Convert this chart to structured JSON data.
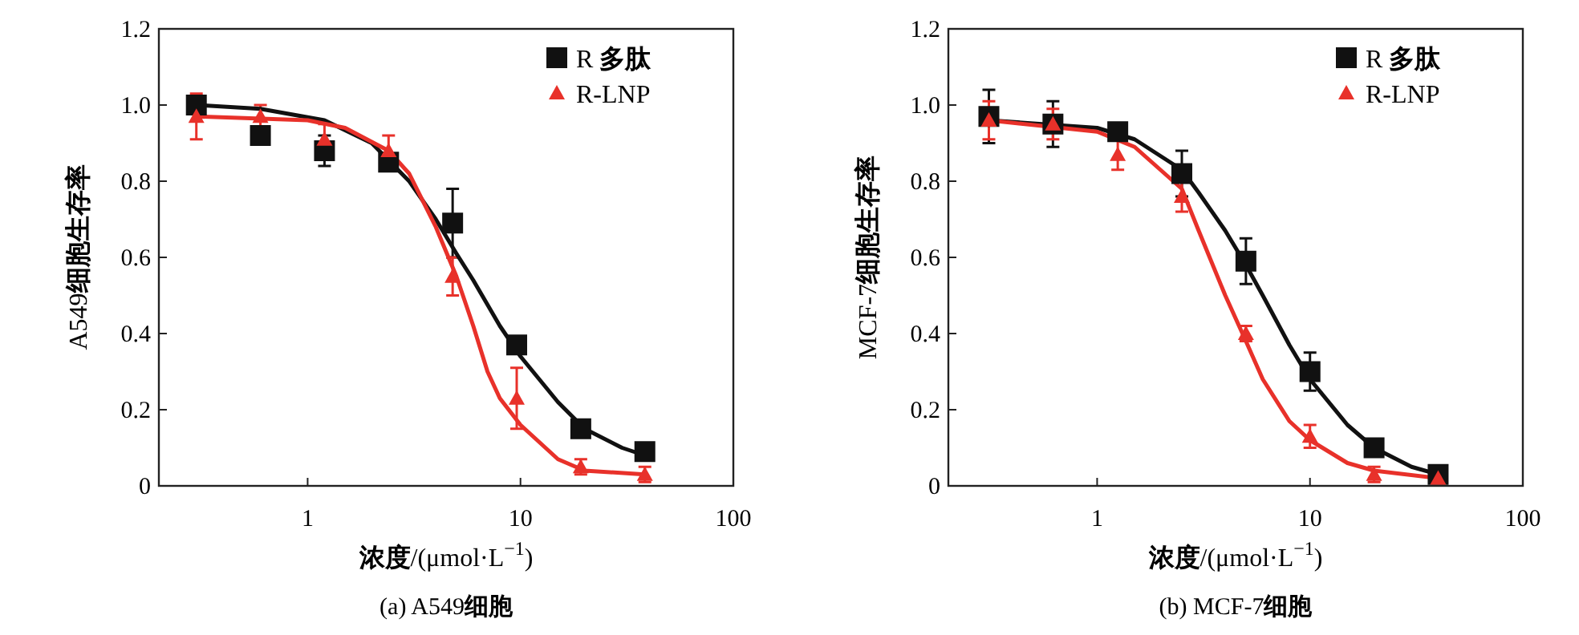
{
  "chart_data": [
    {
      "type": "scatter",
      "xlabel": "浓度/(μmol·L$^{−1}$)",
      "ylabel": "A549细胞生存率",
      "annotations": [
        "(a) A549细胞"
      ],
      "log": "x",
      "xlim": [
        0.2,
        100
      ],
      "xticks": [
        1,
        10,
        100
      ],
      "ylim": [
        0,
        1.2
      ],
      "yticks": [
        0,
        0.2,
        0.4,
        0.6,
        0.8,
        {
          "value": 1,
          "label": "1.0"
        },
        1.2
      ],
      "legend": "top right",
      "grid": false,
      "series": [
        {
          "type": "line",
          "color": "#111111",
          "marker": "none",
          "line_style": "solid",
          "x": [
            0.3,
            0.6,
            1.2,
            2,
            3,
            4,
            5,
            6,
            8,
            10,
            15,
            20,
            30,
            38.4
          ],
          "values": [
            1.0,
            0.99,
            0.96,
            0.9,
            0.8,
            0.7,
            0.61,
            0.54,
            0.42,
            0.34,
            0.22,
            0.15,
            0.1,
            0.08
          ]
        },
        {
          "type": "line",
          "color": "#e8312a",
          "marker": "none",
          "line_style": "solid",
          "x": [
            0.3,
            1,
            1.5,
            2.4,
            3,
            4,
            5,
            6,
            7,
            8,
            10,
            15,
            20,
            38.4
          ],
          "values": [
            0.97,
            0.96,
            0.94,
            0.88,
            0.82,
            0.68,
            0.55,
            0.42,
            0.3,
            0.23,
            0.16,
            0.07,
            0.04,
            0.03
          ]
        },
        {
          "type": "scatter",
          "name": "R 多肽",
          "color": "#111111",
          "marker": "square",
          "x": [
            0.3,
            0.6,
            1.2,
            2.4,
            4.8,
            9.6,
            19.2,
            38.4
          ],
          "values": [
            1.0,
            0.92,
            0.88,
            0.85,
            0.69,
            0.37,
            0.15,
            0.09
          ],
          "errors": [
            0.02,
            0.02,
            0.04,
            0.02,
            0.09,
            0.02,
            0.01,
            0.01
          ]
        },
        {
          "type": "scatter",
          "name": "R-LNP",
          "color": "#e8312a",
          "marker": "triangle",
          "x": [
            0.3,
            0.6,
            1.2,
            2.4,
            4.8,
            9.6,
            19.2,
            38.4
          ],
          "values": [
            0.97,
            0.97,
            0.91,
            0.88,
            0.55,
            0.23,
            0.05,
            0.03
          ],
          "errors": [
            0.06,
            0.03,
            0.04,
            0.04,
            0.05,
            0.08,
            0.02,
            0.02
          ]
        }
      ]
    },
    {
      "type": "scatter",
      "xlabel": "浓度/(μmol·L$^{−1}$)",
      "ylabel": "MCF-7细胞生存率",
      "annotations": [
        "(b) MCF-7细胞"
      ],
      "log": "x",
      "xlim": [
        0.2,
        100
      ],
      "xticks": [
        1,
        10,
        100
      ],
      "ylim": [
        0,
        1.2
      ],
      "yticks": [
        0,
        0.2,
        0.4,
        0.6,
        0.8,
        {
          "value": 1,
          "label": "1.0"
        },
        1.2
      ],
      "legend": "top right",
      "grid": false,
      "series": [
        {
          "type": "line",
          "color": "#111111",
          "marker": "none",
          "line_style": "solid",
          "x": [
            0.31,
            1,
            1.5,
            2.5,
            3,
            4,
            5,
            6,
            8,
            10,
            15,
            20,
            30,
            40
          ],
          "values": [
            0.96,
            0.94,
            0.91,
            0.83,
            0.77,
            0.67,
            0.58,
            0.5,
            0.37,
            0.28,
            0.16,
            0.1,
            0.05,
            0.03
          ]
        },
        {
          "type": "line",
          "color": "#e8312a",
          "marker": "none",
          "line_style": "solid",
          "x": [
            0.31,
            1,
            1.5,
            2.5,
            3,
            4,
            5,
            6,
            8,
            10,
            15,
            20,
            40
          ],
          "values": [
            0.96,
            0.93,
            0.89,
            0.78,
            0.67,
            0.5,
            0.38,
            0.28,
            0.17,
            0.12,
            0.06,
            0.04,
            0.02
          ]
        },
        {
          "type": "scatter",
          "name": "R 多肽",
          "color": "#111111",
          "marker": "square",
          "x": [
            0.31,
            0.62,
            1.25,
            2.5,
            5,
            10,
            20,
            40
          ],
          "values": [
            0.97,
            0.95,
            0.93,
            0.82,
            0.59,
            0.3,
            0.1,
            0.03
          ],
          "errors": [
            0.07,
            0.06,
            0.02,
            0.06,
            0.06,
            0.05,
            0.02,
            0.01
          ]
        },
        {
          "type": "scatter",
          "name": "R-LNP",
          "color": "#e8312a",
          "marker": "triangle",
          "x": [
            0.31,
            0.62,
            1.25,
            2.5,
            5,
            10,
            20,
            40
          ],
          "values": [
            0.96,
            0.95,
            0.87,
            0.76,
            0.4,
            0.13,
            0.03,
            0.02
          ],
          "errors": [
            0.05,
            0.04,
            0.04,
            0.04,
            0.02,
            0.03,
            0.02,
            0.01
          ]
        }
      ]
    }
  ]
}
